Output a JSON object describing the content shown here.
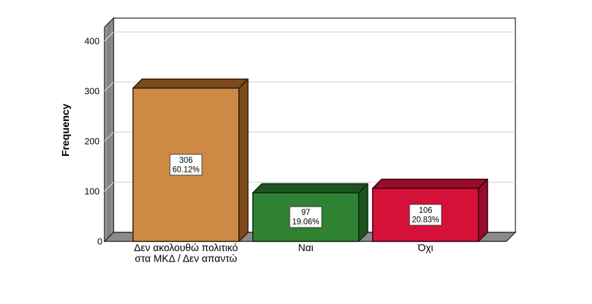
{
  "chart_data": {
    "type": "bar",
    "style": "3d-spss",
    "title": "",
    "xlabel": "",
    "ylabel": "Frequency",
    "categories": [
      "Δεν ακολουθώ πολιτικό\nστα ΜΚΔ / Δεν απαντώ",
      "Ναι",
      "Όχι"
    ],
    "values": [
      306,
      97,
      106
    ],
    "count_labels": [
      "306",
      "97",
      "106"
    ],
    "percent_labels": [
      "60.12%",
      "19.06%",
      "20.83%"
    ],
    "y_ticks": [
      0,
      100,
      200,
      300,
      400
    ],
    "ylim": [
      0,
      429
    ],
    "grid": true,
    "legend_position": "none",
    "colors": {
      "bar_front": [
        "#ce8a45",
        "#2e8231",
        "#d51039"
      ],
      "bar_depth": [
        "#7c4a1d",
        "#1c5420",
        "#970c2a"
      ],
      "bar_outline": [
        "#2e1c07",
        "#0c2b0e",
        "#33010c"
      ],
      "wall_gray": "#8d8d8d",
      "floor_gray": "#8a8a8a",
      "gridline": "#c9c9c9",
      "wall_tick": "#dcdcdc",
      "frame": "#1a1a1a",
      "label_box_bg": "#ffffff",
      "label_box_border": "#3a3a3a",
      "text": "#000000"
    }
  }
}
